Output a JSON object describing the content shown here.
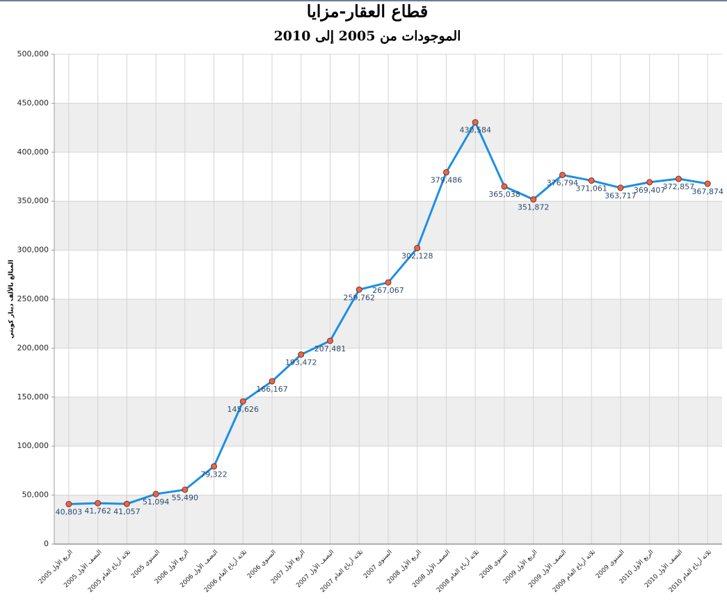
{
  "chart_data": {
    "type": "line",
    "title": "قطاع العقار-مزايا",
    "subtitle": "الموجودات من 2005 إلى 2010",
    "y_label": "المبالغ بالألف دينار كويتي",
    "categories": [
      "الربع الأول 2005",
      "النصف الأول 2005",
      "ثلاثة أرباع العام 2005",
      "السنوي 2005",
      "الربع الأول 2006",
      "النصف الأول 2006",
      "ثلاثة أرباع العام 2006",
      "السنوي 2006",
      "الربع الأول 2007",
      "النصف الأول 2007",
      "ثلاثة أرباع العام 2007",
      "السنوي 2007",
      "الربع الأول 2008",
      "النصف الأول 2008",
      "ثلاثة أرباع العام 2008",
      "السنوي 2008",
      "الربع الأول 2009",
      "النصف الأول 2009",
      "ثلاثة أرباع العام 2009",
      "السنوي 2009",
      "الربع الأول 2010",
      "النصف الأول 2010",
      "ثلاثة أرباع العام 2010"
    ],
    "series": [
      {
        "color": "#1a8fe6",
        "marker_color": "#e8674a",
        "values": [
          40803,
          41762,
          41057,
          51094,
          55490,
          79322,
          145626,
          166167,
          193472,
          207481,
          259762,
          267067,
          302128,
          379486,
          430584,
          365038,
          351872,
          376794,
          371061,
          363717,
          369407,
          372857,
          367874
        ],
        "value_labels": [
          "40,803",
          "41,762",
          "41,057",
          "51,094",
          "55,490",
          "79,322",
          "145,626",
          "166,167",
          "193,472",
          "207,481",
          "259,762",
          "267,067",
          "302,128",
          "379,486",
          "430,584",
          "365,038",
          "351,872",
          "376,794",
          "371,061",
          "363,717",
          "369,407",
          "372,857",
          "367,874"
        ]
      }
    ],
    "ylim": [
      0,
      500000
    ],
    "yticks": [
      {
        "value": 0,
        "label": "0"
      },
      {
        "value": 50000,
        "label": "50,000"
      },
      {
        "value": 100000,
        "label": "100,000"
      },
      {
        "value": 150000,
        "label": "150,000"
      },
      {
        "value": 200000,
        "label": "200,000"
      },
      {
        "value": 250000,
        "label": "250,000"
      },
      {
        "value": 300000,
        "label": "300,000"
      },
      {
        "value": 350000,
        "label": "350,000"
      },
      {
        "value": 400000,
        "label": "400,000"
      },
      {
        "value": 450000,
        "label": "450,000"
      },
      {
        "value": 500000,
        "label": "500,000"
      }
    ],
    "grid": true
  }
}
